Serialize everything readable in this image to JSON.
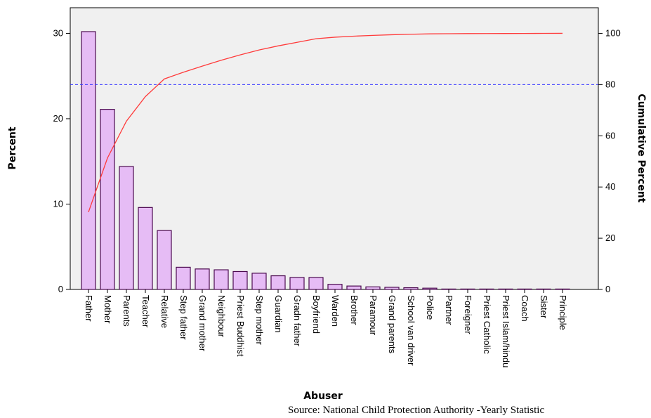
{
  "chart_data": {
    "type": "bar",
    "title": "",
    "xlabel": "Abuser",
    "ylabel": "Percent",
    "y2label": "Cumulative Percent",
    "ylim": [
      0,
      33
    ],
    "y2lim": [
      0,
      110
    ],
    "yticks": [
      "0",
      "10",
      "20",
      "30"
    ],
    "y2ticks": [
      "0",
      "20",
      "40",
      "60",
      "80",
      "100"
    ],
    "grid": false,
    "legend": "none",
    "categories": [
      "Father",
      "Mother",
      "Parents",
      "Teacher",
      "Relative",
      "Step father",
      "Grand mother",
      "Neighbour",
      "Priest Buddhist",
      "Step mother",
      "Guardian",
      "Gradn father",
      "Boyfriend",
      "Warden",
      "Brother",
      "Paramour",
      "Grand parents",
      "School van driver",
      "Police",
      "Partner",
      "Foreigner",
      "Priest Catholic",
      "Priest Islam/hindu",
      "Coach",
      "Sister",
      "Principle"
    ],
    "series": [
      {
        "kind": "bar",
        "axis": "left",
        "values": [
          30.2,
          21.1,
          14.4,
          9.6,
          6.9,
          2.6,
          2.4,
          2.3,
          2.1,
          1.9,
          1.6,
          1.4,
          1.4,
          0.6,
          0.4,
          0.3,
          0.25,
          0.2,
          0.15,
          0.05,
          0.05,
          0.05,
          0.05,
          0.05,
          0.05,
          0.05
        ],
        "color": "#e6bcf5",
        "stroke": "#4b0a4f"
      },
      {
        "kind": "line",
        "axis": "right",
        "values": [
          30.2,
          51.3,
          65.7,
          75.3,
          82.2,
          84.8,
          87.2,
          89.5,
          91.6,
          93.5,
          95.1,
          96.5,
          97.9,
          98.5,
          98.9,
          99.2,
          99.45,
          99.65,
          99.8,
          99.85,
          99.9,
          99.92,
          99.94,
          99.96,
          99.98,
          100.0
        ],
        "color": "#ff3b3b"
      }
    ],
    "reference_line": {
      "axis": "right",
      "value": 80,
      "color": "#3b3bff",
      "style": "dashed"
    }
  },
  "source_note": "Source: National Child Protection Authority -Yearly Statistic"
}
